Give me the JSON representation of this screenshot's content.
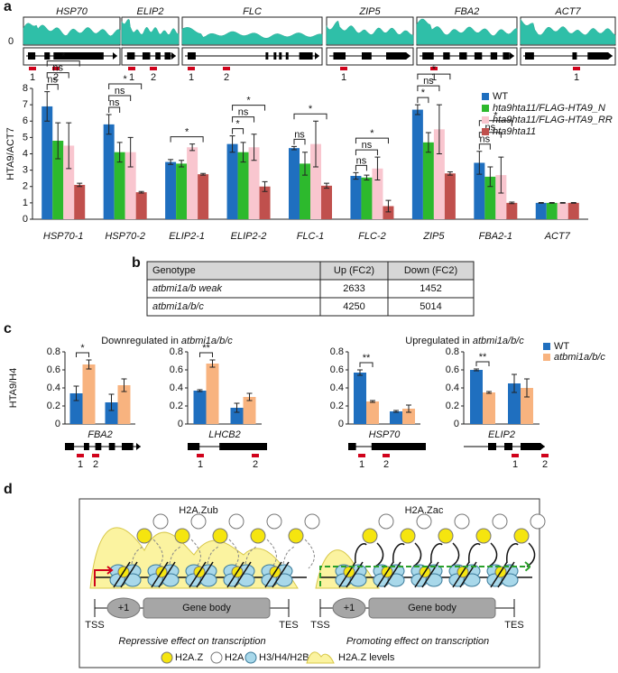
{
  "panels": [
    "a",
    "b",
    "c",
    "d"
  ],
  "tracks": {
    "genes": [
      "HSP70",
      "ELIP2",
      "FLC",
      "ZIP5",
      "FBA2",
      "ACT7"
    ],
    "ytick": "0",
    "primers": [
      [
        "1",
        "2"
      ],
      [
        "1",
        "2"
      ],
      [
        "1",
        "2"
      ],
      [
        "1"
      ],
      [
        "1"
      ],
      [
        "1"
      ]
    ]
  },
  "chart_data": [
    {
      "type": "bar",
      "ylabel": "HTA9/ACT7",
      "categories": [
        "HSP70-1",
        "HSP70-2",
        "ELIP2-1",
        "ELIP2-2",
        "FLC-1",
        "FLC-2",
        "ZIP5",
        "FBA2-1",
        "ACT7"
      ],
      "series": [
        {
          "name": "WT",
          "color": "#1f6fbf",
          "values": [
            6.9,
            5.8,
            3.5,
            4.6,
            4.35,
            2.65,
            6.7,
            3.45,
            1
          ],
          "errors": [
            0.9,
            0.6,
            0.15,
            0.5,
            0.1,
            0.2,
            0.3,
            0.7,
            0.02
          ]
        },
        {
          "name": "hta9hta11/FLAG-HTA9_N",
          "color": "#2db92d",
          "values": [
            4.8,
            4.1,
            3.4,
            4.1,
            3.4,
            2.55,
            4.7,
            2.6,
            1
          ],
          "errors": [
            1.1,
            0.6,
            0.2,
            0.6,
            0.7,
            0.15,
            0.6,
            0.6,
            0.02
          ]
        },
        {
          "name": "hta9hta11/FLAG-HTA9_RR",
          "color": "#f9c6cf",
          "values": [
            4.5,
            4.1,
            4.4,
            4.4,
            4.6,
            3.1,
            5.5,
            2.7,
            1
          ],
          "errors": [
            1.4,
            0.9,
            0.2,
            0.8,
            1.4,
            0.7,
            1.5,
            1.1,
            0.02
          ]
        },
        {
          "name": "hta9hta11",
          "color": "#c0504d",
          "values": [
            2.1,
            1.65,
            2.75,
            2.0,
            2.05,
            0.8,
            2.8,
            1.0,
            1
          ],
          "errors": [
            0.1,
            0.05,
            0.05,
            0.3,
            0.15,
            0.35,
            0.1,
            0.05,
            0.02
          ]
        }
      ],
      "significance": [
        [
          "ns",
          "ns",
          "*"
        ],
        [
          "ns",
          "ns",
          "*"
        ],
        [
          null,
          null,
          "*"
        ],
        [
          "*",
          "ns",
          "*"
        ],
        [
          "ns",
          null,
          "*"
        ],
        [
          "ns",
          "ns",
          "*"
        ],
        [
          "*",
          "ns",
          "*"
        ],
        [
          "ns",
          "ns",
          "*"
        ],
        [
          null,
          null,
          null
        ]
      ],
      "ylim": [
        0,
        8
      ],
      "yticks": [
        0,
        1,
        2,
        3,
        4,
        5,
        6,
        7,
        8
      ],
      "legend": "upper right"
    },
    {
      "type": "bar",
      "title": "FBA2",
      "ylabel": "HTA9/H4",
      "categories": [
        "1",
        "2"
      ],
      "series": [
        {
          "color": "#1f6fbf",
          "values": [
            0.34,
            0.24
          ],
          "errors": [
            0.08,
            0.09
          ]
        },
        {
          "color": "#f8b37f",
          "values": [
            0.66,
            0.43
          ],
          "errors": [
            0.05,
            0.07
          ]
        }
      ],
      "significance": [
        "*",
        null
      ],
      "ylim": [
        0,
        0.8
      ],
      "yticks": [
        0,
        0.2,
        0.4,
        0.6,
        0.8
      ]
    },
    {
      "type": "bar",
      "title": "LHCB2",
      "categories": [
        "1",
        "2"
      ],
      "series": [
        {
          "color": "#1f6fbf",
          "values": [
            0.37,
            0.18
          ],
          "errors": [
            0.01,
            0.05
          ]
        },
        {
          "color": "#f8b37f",
          "values": [
            0.67,
            0.3
          ],
          "errors": [
            0.04,
            0.04
          ]
        }
      ],
      "significance": [
        "**",
        null
      ],
      "ylim": [
        0,
        0.8
      ],
      "yticks": [
        0,
        0.2,
        0.4,
        0.6,
        0.8
      ]
    },
    {
      "type": "bar",
      "title": "HSP70",
      "categories": [
        "1",
        "2"
      ],
      "series": [
        {
          "color": "#1f6fbf",
          "values": [
            0.57,
            0.14
          ],
          "errors": [
            0.03,
            0.01
          ]
        },
        {
          "color": "#f8b37f",
          "values": [
            0.25,
            0.17
          ],
          "errors": [
            0.01,
            0.04
          ]
        }
      ],
      "significance": [
        "**",
        null
      ],
      "ylim": [
        0,
        0.8
      ],
      "yticks": [
        0,
        0.2,
        0.4,
        0.6,
        0.8
      ]
    },
    {
      "type": "bar",
      "title": "ELIP2",
      "categories": [
        "1",
        "2"
      ],
      "series": [
        {
          "name": "WT",
          "color": "#1f6fbf",
          "values": [
            0.6,
            0.45
          ],
          "errors": [
            0.01,
            0.1
          ]
        },
        {
          "name": "atbmi1a/b/c",
          "color": "#f8b37f",
          "values": [
            0.35,
            0.4
          ],
          "errors": [
            0.01,
            0.1
          ]
        }
      ],
      "significance": [
        "**",
        null
      ],
      "ylim": [
        0,
        0.8
      ],
      "yticks": [
        0,
        0.2,
        0.4,
        0.6,
        0.8
      ],
      "legend": "upper right"
    }
  ],
  "panel_c": {
    "headings": [
      {
        "text": "Downregulated in",
        "genotype": "atbmi1a/b/c"
      },
      {
        "text": "Upregulated in",
        "genotype": "atbmi1a/b/c"
      }
    ]
  },
  "table": {
    "header": [
      "Genotype",
      "Up (FC2)",
      "Down (FC2)"
    ],
    "rows": [
      [
        "atbmi1a/b weak",
        2633,
        1452
      ],
      [
        "atbmi1a/b/c",
        4250,
        5014
      ]
    ]
  },
  "diagram": {
    "left_title": "H2A.Zub",
    "right_title": "H2A.Zac",
    "plus_one": "+1",
    "gene_body": "Gene body",
    "tss": "TSS",
    "tes": "TES",
    "left_effect": "Repressive effect on transcription",
    "right_effect": "Promoting effect on transcription",
    "legend": [
      "H2A.Z",
      "H2A",
      "H3/H4/H2B",
      "H2A.Z levels"
    ]
  }
}
